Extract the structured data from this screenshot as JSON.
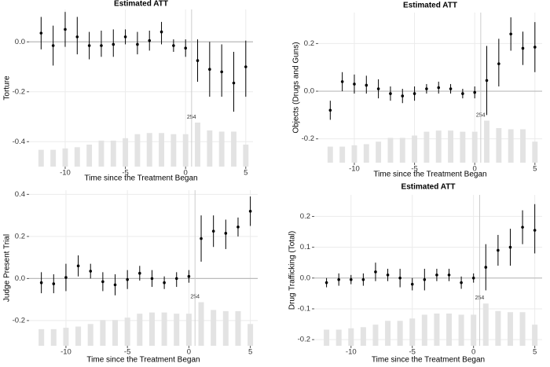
{
  "chart_data": [
    {
      "type": "errorbar",
      "title": "Estimated ATT",
      "ylabel": "Torture",
      "xlabel": "Time since the Treatment Began",
      "x": [
        -12,
        -11,
        -10,
        -9,
        -8,
        -7,
        -6,
        -5,
        -4,
        -3,
        -2,
        -1,
        0,
        1,
        2,
        3,
        4,
        5
      ],
      "values": [
        0.035,
        -0.015,
        0.05,
        0.02,
        -0.015,
        -0.015,
        -0.01,
        0.02,
        -0.01,
        0.005,
        0.04,
        -0.015,
        -0.025,
        -0.075,
        -0.11,
        -0.12,
        -0.165,
        -0.1
      ],
      "lower": [
        -0.03,
        -0.095,
        -0.02,
        -0.05,
        -0.07,
        -0.06,
        -0.06,
        -0.01,
        -0.05,
        -0.035,
        -0.01,
        -0.04,
        -0.06,
        -0.16,
        -0.22,
        -0.22,
        -0.28,
        -0.22
      ],
      "upper": [
        0.1,
        0.065,
        0.12,
        0.1,
        0.04,
        0.045,
        0.05,
        0.05,
        0.04,
        0.045,
        0.08,
        0.01,
        0.01,
        0.01,
        0.0,
        -0.01,
        -0.04,
        0.005
      ],
      "bar_values": [
        97,
        97,
        105,
        112,
        127,
        150,
        150,
        164,
        187,
        194,
        194,
        187,
        187,
        254,
        209,
        202,
        202,
        127
      ],
      "xlim": [
        -13,
        5.6
      ],
      "xticks": [
        -10,
        -5,
        0,
        5
      ],
      "ylim": [
        -0.5,
        0.13
      ],
      "yticks": [
        {
          "value": -0.4,
          "label": "-0.4"
        },
        {
          "value": -0.2,
          "label": "-0.2"
        },
        {
          "value": 0,
          "label": "0.0"
        }
      ],
      "vline_x": 0.5,
      "grid": true,
      "color": "#000000",
      "bar_color": "#e3e3e3"
    },
    {
      "type": "errorbar",
      "title": "Estimated ATT",
      "ylabel": "Objects (Drugs and Guns)",
      "xlabel": "Time since the Treatment Began",
      "x": [
        -12,
        -11,
        -10,
        -9,
        -8,
        -7,
        -6,
        -5,
        -4,
        -3,
        -2,
        -1,
        0,
        1,
        2,
        3,
        4,
        5
      ],
      "values": [
        -0.08,
        0.04,
        0.03,
        0.025,
        0.01,
        -0.01,
        -0.02,
        -0.01,
        0.01,
        0.015,
        0.01,
        -0.01,
        -0.005,
        0.045,
        0.115,
        0.24,
        0.18,
        0.185
      ],
      "lower": [
        -0.12,
        0.0,
        -0.01,
        -0.01,
        -0.03,
        -0.04,
        -0.05,
        -0.04,
        -0.01,
        -0.01,
        -0.01,
        -0.03,
        -0.03,
        -0.1,
        0.02,
        0.17,
        0.11,
        0.08
      ],
      "upper": [
        -0.04,
        0.08,
        0.07,
        0.065,
        0.05,
        0.02,
        0.01,
        0.02,
        0.03,
        0.04,
        0.03,
        0.01,
        0.02,
        0.19,
        0.22,
        0.31,
        0.25,
        0.29
      ],
      "bar_values": [
        97,
        97,
        105,
        112,
        127,
        150,
        150,
        164,
        187,
        194,
        194,
        187,
        187,
        254,
        209,
        202,
        202,
        127
      ],
      "xlim": [
        -13,
        5.6
      ],
      "xticks": [
        -10,
        -5,
        0,
        5
      ],
      "ylim": [
        -0.3,
        0.33
      ],
      "yticks": [
        {
          "value": -0.2,
          "label": "-0.2"
        },
        {
          "value": 0,
          "label": "0.0"
        },
        {
          "value": 0.2,
          "label": "0.2"
        }
      ],
      "vline_x": 0.5,
      "grid": true,
      "color": "#000000",
      "bar_color": "#e3e3e3"
    },
    {
      "type": "errorbar",
      "ylabel": "Judge Present Trial",
      "xlabel": "Time since the Treatment Began",
      "x": [
        -12,
        -11,
        -10,
        -9,
        -8,
        -7,
        -6,
        -5,
        -4,
        -3,
        -2,
        -1,
        0,
        1,
        2,
        3,
        4,
        5
      ],
      "values": [
        -0.02,
        -0.025,
        0.005,
        0.06,
        0.035,
        -0.015,
        -0.03,
        -0.005,
        0.025,
        0.0,
        -0.02,
        0.0,
        0.01,
        0.19,
        0.225,
        0.215,
        0.245,
        0.32
      ],
      "lower": [
        -0.07,
        -0.07,
        -0.06,
        0.01,
        0.0,
        -0.06,
        -0.08,
        -0.05,
        -0.01,
        -0.04,
        -0.05,
        -0.04,
        -0.02,
        0.08,
        0.15,
        0.14,
        0.2,
        0.25
      ],
      "upper": [
        0.03,
        0.02,
        0.07,
        0.11,
        0.07,
        0.03,
        0.02,
        0.04,
        0.06,
        0.04,
        0.01,
        0.03,
        0.04,
        0.3,
        0.3,
        0.28,
        0.29,
        0.39
      ],
      "bar_values": [
        97,
        97,
        105,
        112,
        127,
        150,
        150,
        164,
        187,
        194,
        194,
        187,
        187,
        254,
        209,
        202,
        202,
        127
      ],
      "xlim": [
        -13,
        5.6
      ],
      "xticks": [
        -10,
        -5,
        0,
        5
      ],
      "ylim": [
        -0.32,
        0.42
      ],
      "yticks": [
        {
          "value": -0.2,
          "label": "-0.2"
        },
        {
          "value": 0,
          "label": "0.0"
        },
        {
          "value": 0.2,
          "label": "0.2"
        },
        {
          "value": 0.4,
          "label": "0.4"
        }
      ],
      "vline_x": 0.5,
      "grid": true,
      "color": "#000000",
      "bar_color": "#e3e3e3"
    },
    {
      "type": "errorbar",
      "title": "Estimated ATT",
      "ylabel": "Drug Trafficking (Total)",
      "xlabel": "Time since the Treatment Began",
      "x": [
        -12,
        -11,
        -10,
        -9,
        -8,
        -7,
        -6,
        -5,
        -4,
        -3,
        -2,
        -1,
        0,
        1,
        2,
        3,
        4,
        5
      ],
      "values": [
        -0.015,
        -0.005,
        -0.005,
        -0.005,
        0.02,
        0.01,
        0.0,
        -0.02,
        -0.005,
        0.01,
        0.01,
        -0.015,
        0.0,
        0.035,
        0.09,
        0.1,
        0.165,
        0.155
      ],
      "lower": [
        -0.03,
        -0.025,
        -0.02,
        -0.025,
        -0.01,
        -0.01,
        -0.03,
        -0.04,
        -0.04,
        -0.01,
        -0.01,
        -0.035,
        -0.015,
        -0.04,
        0.04,
        0.04,
        0.11,
        0.08
      ],
      "upper": [
        0.0,
        0.015,
        0.01,
        0.015,
        0.05,
        0.03,
        0.03,
        0.0,
        0.03,
        0.03,
        0.03,
        0.005,
        0.015,
        0.11,
        0.14,
        0.16,
        0.22,
        0.24
      ],
      "bar_values": [
        97,
        97,
        105,
        112,
        127,
        150,
        150,
        164,
        187,
        194,
        194,
        187,
        187,
        254,
        209,
        202,
        202,
        127
      ],
      "xlim": [
        -13,
        5.6
      ],
      "xticks": [
        -10,
        -5,
        0,
        5
      ],
      "ylim": [
        -0.22,
        0.27
      ],
      "yticks": [
        {
          "value": -0.2,
          "label": "-0.2"
        },
        {
          "value": -0.1,
          "label": "-0.1"
        },
        {
          "value": 0,
          "label": "0.0"
        },
        {
          "value": 0.1,
          "label": "0.1"
        },
        {
          "value": 0.2,
          "label": "0.2"
        }
      ],
      "vline_x": 0.5,
      "grid": true,
      "color": "#000000",
      "bar_color": "#e3e3e3"
    }
  ]
}
